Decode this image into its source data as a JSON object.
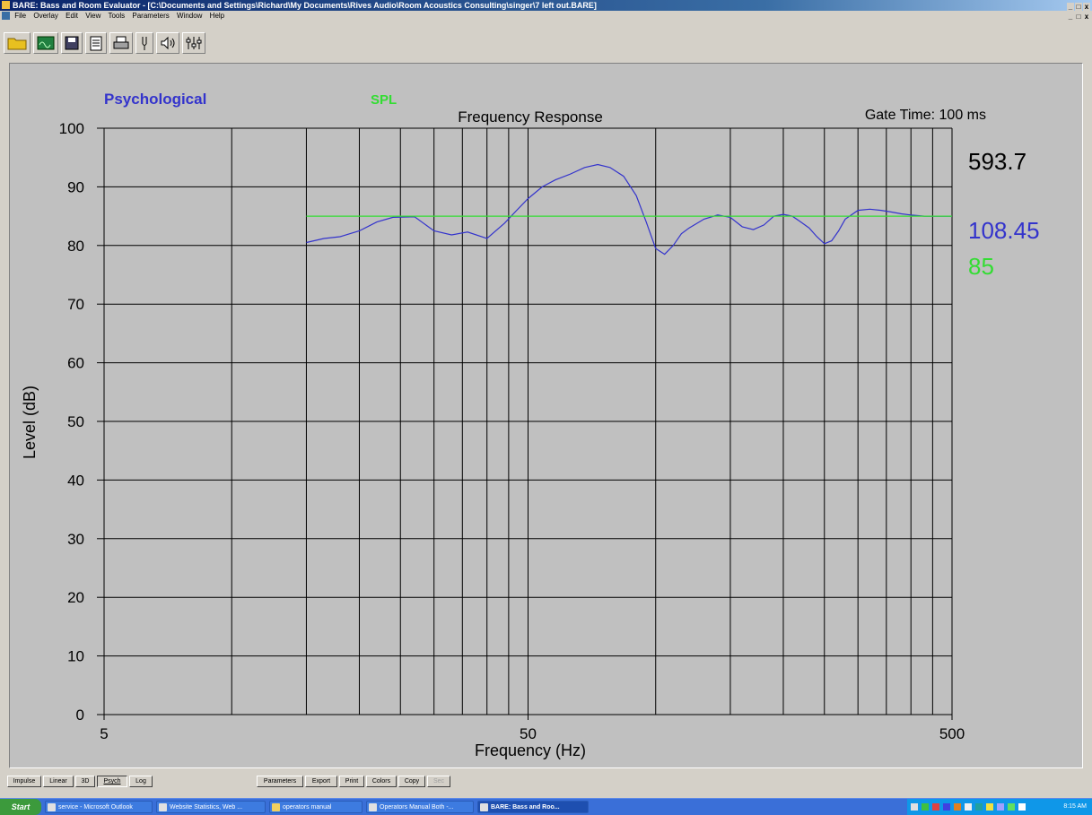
{
  "window": {
    "title": "BARE: Bass and Room Evaluator - [C:\\Documents and Settings\\Richard\\My Documents\\Rives Audio\\Room Acoustics Consulting\\singer\\7 left out.BARE]",
    "controls": [
      "_",
      "□",
      "x"
    ]
  },
  "menubar": {
    "items": [
      "File",
      "Overlay",
      "Edit",
      "View",
      "Tools",
      "Parameters",
      "Window",
      "Help"
    ]
  },
  "toolbar": {
    "buttons": [
      "open-folder-icon",
      "waveform-icon",
      "save-icon",
      "notes-icon",
      "print-icon",
      "tuning-fork-icon",
      "speaker-icon",
      "equalizer-icon"
    ]
  },
  "chart": {
    "mode_label": "Psychological",
    "spl_label": "SPL",
    "gate_time": "Gate Time: 100 ms",
    "readout_black": "593.7",
    "readout_blue": "108.45",
    "readout_green": "85",
    "colors": {
      "psych": "#3333cc",
      "spl": "#33dd33",
      "grid": "#000000",
      "bg": "#c0c0c0"
    }
  },
  "chart_data": {
    "type": "line",
    "title": "Frequency Response",
    "xlabel": "Frequency (Hz)",
    "ylabel": "Level (dB)",
    "xscale": "log",
    "xlim": [
      5,
      500
    ],
    "ylim": [
      0,
      100
    ],
    "xticks": [
      "5",
      "50",
      "500"
    ],
    "yticks": [
      "0",
      "10",
      "20",
      "30",
      "40",
      "50",
      "60",
      "70",
      "80",
      "90",
      "100"
    ],
    "grid": true,
    "series": [
      {
        "name": "Psychological",
        "color": "#3333cc",
        "x": [
          15,
          16.5,
          18,
          20,
          22,
          24,
          27,
          30,
          33,
          36,
          40,
          44,
          47,
          50,
          54,
          58,
          63,
          68,
          73,
          78,
          84,
          90,
          95,
          100,
          105,
          110,
          115,
          120,
          130,
          140,
          150,
          160,
          170,
          180,
          190,
          200,
          210,
          220,
          230,
          240,
          250,
          260,
          270,
          280,
          300,
          320,
          340,
          360,
          380,
          400,
          430,
          460,
          500
        ],
        "y": [
          80.5,
          81.2,
          81.5,
          82.5,
          84.0,
          84.8,
          84.9,
          82.5,
          81.8,
          82.3,
          81.2,
          83.8,
          86.0,
          88.0,
          90.0,
          91.2,
          92.2,
          93.3,
          93.8,
          93.3,
          91.8,
          88.5,
          84.0,
          79.5,
          78.5,
          80.0,
          82.0,
          83.0,
          84.5,
          85.2,
          84.8,
          83.2,
          82.7,
          83.5,
          85.0,
          85.3,
          85.0,
          84.0,
          83.0,
          81.5,
          80.3,
          80.8,
          82.5,
          84.5,
          86.0,
          86.2,
          86.0,
          85.7,
          85.4,
          85.2,
          85.0,
          85.0,
          85.0
        ],
        "note_x_trim": 1
      },
      {
        "name": "SPL",
        "color": "#33dd33",
        "x": [
          15,
          500
        ],
        "y": [
          85,
          85
        ]
      }
    ]
  },
  "bottom_buttons": {
    "left": [
      "Impulse",
      "Linear",
      "3D",
      "Psych",
      "Log"
    ],
    "right": [
      "Parameters",
      "Export",
      "Print",
      "Colors",
      "Copy",
      "Sec"
    ]
  },
  "taskbar": {
    "start": "Start",
    "tasks": [
      "service - Microsoft Outlook",
      "Website Statistics, Web ...",
      "operators manual",
      "Operators Manual Both -...",
      "BARE: Bass and Roo..."
    ],
    "clock": "8:15 AM"
  }
}
